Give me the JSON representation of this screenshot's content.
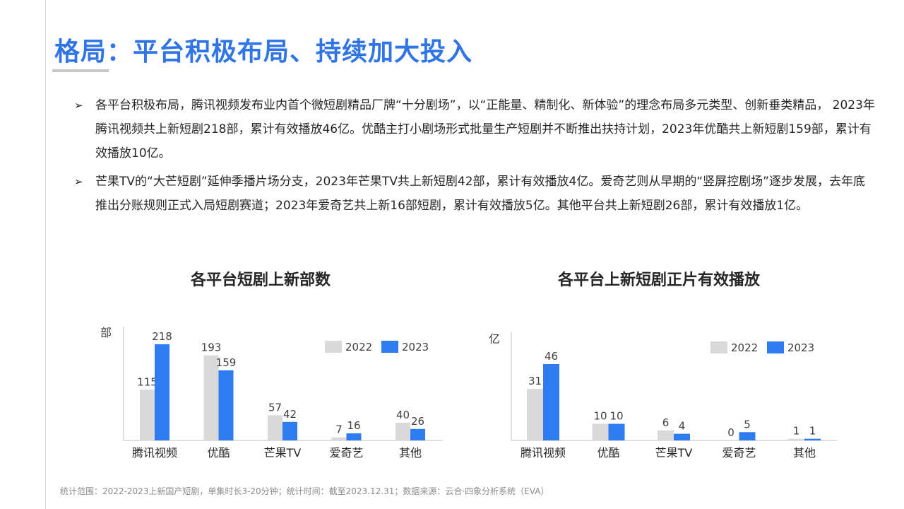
{
  "slide": {
    "title": "格局：平台积极布局、持续加大投入"
  },
  "bullets": [
    "各平台积极布局，腾讯视频发布业内首个微短剧精品厂牌“十分剧场”，以“正能量、精制化、新体验”的理念布局多元类型、创新垂类精品， 2023年腾讯视频共上新短剧218部，累计有效播放46亿。优酷主打小剧场形式批量生产短剧并不断推出扶持计划，2023年优酷共上新短剧159部，累计有效播放10亿。",
    "芒果TV的“大芒短剧”延伸季播片场分支，2023年芒果TV共上新短剧42部，累计有效播放4亿。爱奇艺则从早期的“竖屏控剧场”逐步发展，去年底推出分账规则正式入局短剧赛道；2023年爱奇艺共上新16部短剧，累计有效播放5亿。其他平台共上新短剧26部，累计有效播放1亿。"
  ],
  "chart_data": [
    {
      "type": "bar",
      "title": "各平台短剧上新部数",
      "ylabel": "部",
      "categories": [
        "腾讯视频",
        "优酷",
        "芒果TV",
        "爱奇艺",
        "其他"
      ],
      "series": [
        {
          "name": "2022",
          "values": [
            115,
            193,
            57,
            7,
            40
          ],
          "color": "#d9d9d9"
        },
        {
          "name": "2023",
          "values": [
            218,
            159,
            42,
            16,
            26
          ],
          "color": "#2f7bf0"
        }
      ],
      "ylim": [
        0,
        218
      ],
      "grid": false,
      "legend": "top-right"
    },
    {
      "type": "bar",
      "title": "各平台上新短剧正片有效播放",
      "ylabel": "亿",
      "categories": [
        "腾讯视频",
        "优酷",
        "芒果TV",
        "爱奇艺",
        "其他"
      ],
      "series": [
        {
          "name": "2022",
          "values": [
            31,
            10,
            6,
            0,
            1
          ],
          "color": "#d9d9d9"
        },
        {
          "name": "2023",
          "values": [
            46,
            10,
            4,
            5,
            1
          ],
          "color": "#2f7bf0"
        }
      ],
      "ylim": [
        0,
        46
      ],
      "grid": false,
      "legend": "top-right"
    }
  ],
  "footnote": "统计范围：2022-2023上新国产短剧，单集时长3-20分钟；统计时间：截至2023.12.31；数据来源：云合·四象分析系统（EVA）"
}
